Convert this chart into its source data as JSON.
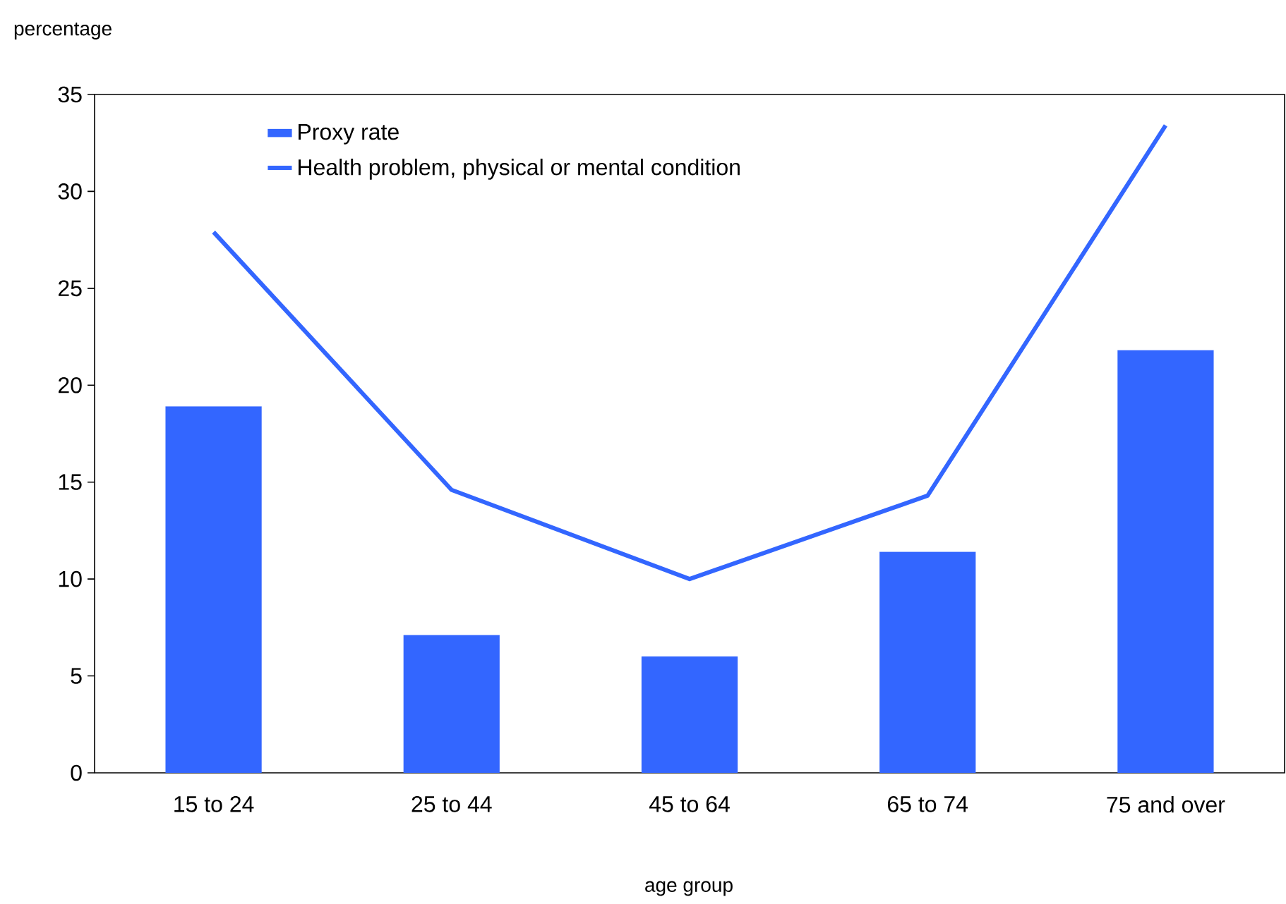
{
  "chart_data": {
    "type": "bar",
    "xlabel": "age group",
    "ylabel": "percentage",
    "categories": [
      "15 to 24",
      "25 to 44",
      "45 to 64",
      "65 to 74",
      "75 and over"
    ],
    "series": [
      {
        "name": "Proxy rate",
        "color": "#3366ff",
        "values": [
          18.9,
          7.1,
          6.0,
          11.4,
          21.8
        ]
      },
      {
        "name": "Health problem, physical or mental condition",
        "type": "line",
        "color": "#3366ff",
        "marker": "none",
        "values": [
          27.9,
          14.6,
          10.0,
          14.3,
          33.4
        ]
      }
    ],
    "ylim": [
      0,
      35
    ],
    "yticks": [
      0,
      5,
      10,
      15,
      20,
      25,
      30,
      35
    ],
    "grid": false,
    "legend": "top left"
  }
}
